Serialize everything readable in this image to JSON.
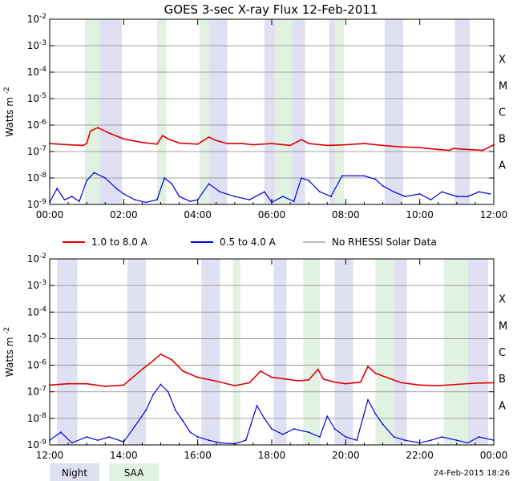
{
  "chart_data": {
    "type": "line",
    "title": "GOES 3-sec X-ray Flux   12-Feb-2011",
    "ylabel": "Watts m",
    "ylabel_superscript": "-2",
    "y_scale": "log",
    "ylim": [
      1e-09,
      0.01
    ],
    "y_tick_labels": [
      {
        "base": "10",
        "exp": "-9"
      },
      {
        "base": "10",
        "exp": "-8"
      },
      {
        "base": "10",
        "exp": "-7"
      },
      {
        "base": "10",
        "exp": "-6"
      },
      {
        "base": "10",
        "exp": "-5"
      },
      {
        "base": "10",
        "exp": "-4"
      },
      {
        "base": "10",
        "exp": "-3"
      },
      {
        "base": "10",
        "exp": "-2"
      }
    ],
    "flare_classes": [
      {
        "label": "A",
        "level": 1e-08
      },
      {
        "label": "B",
        "level": 1e-07
      },
      {
        "label": "C",
        "level": 1e-06
      },
      {
        "label": "M",
        "level": 1e-05
      },
      {
        "label": "X",
        "level": 0.0001
      }
    ],
    "legend": {
      "placement": "between panels",
      "entries": [
        {
          "label": "1.0 to 8.0 A",
          "color": "#e00000"
        },
        {
          "label": "0.5 to 4.0 A",
          "color": "#0000e0"
        },
        {
          "label": "No RHESSI Solar Data",
          "color": "#999999"
        }
      ]
    },
    "band_legend": [
      {
        "label": "Night",
        "color": "#e0e0f3"
      },
      {
        "label": "SAA",
        "color": "#e2f2e2"
      }
    ],
    "footer_timestamp": "24-Feb-2015 18:26",
    "panels": [
      {
        "name": "top",
        "x_range_hours": [
          0,
          12
        ],
        "x_tick_labels": [
          "00:00",
          "02:00",
          "04:00",
          "06:00",
          "08:00",
          "10:00",
          "12:00"
        ],
        "night_bands": [
          [
            1.35,
            1.95
          ],
          [
            4.3,
            4.8
          ],
          [
            5.8,
            6.1
          ],
          [
            6.55,
            6.9
          ],
          [
            7.55,
            7.7
          ],
          [
            9.05,
            9.55
          ],
          [
            10.95,
            11.35
          ]
        ],
        "saa_bands": [
          [
            0.95,
            1.35
          ],
          [
            2.9,
            3.15
          ],
          [
            4.05,
            4.3
          ],
          [
            6.1,
            6.55
          ],
          [
            7.7,
            7.95
          ]
        ],
        "series": [
          {
            "name": "1.0 to 8.0 A",
            "color": "#e00000",
            "x": [
              0,
              0.5,
              0.9,
              1.0,
              1.1,
              1.3,
              1.6,
              2.0,
              2.5,
              2.9,
              3.05,
              3.2,
              3.5,
              4.0,
              4.3,
              4.5,
              4.8,
              5.2,
              5.5,
              6.0,
              6.5,
              6.8,
              7.0,
              7.5,
              8.0,
              8.5,
              9.0,
              9.5,
              10.0,
              10.5,
              10.8,
              10.9,
              11.3,
              11.7,
              12.0
            ],
            "y": [
              2e-07,
              1.8e-07,
              1.7e-07,
              2e-07,
              6e-07,
              8e-07,
              5e-07,
              3e-07,
              2.2e-07,
              1.9e-07,
              4e-07,
              3e-07,
              2.1e-07,
              1.9e-07,
              3.5e-07,
              2.6e-07,
              2e-07,
              2e-07,
              1.8e-07,
              2e-07,
              1.7e-07,
              2.8e-07,
              2e-07,
              1.7e-07,
              1.8e-07,
              2e-07,
              1.7e-07,
              1.5e-07,
              1.4e-07,
              1.2e-07,
              1.1e-07,
              1.3e-07,
              1.2e-07,
              1.1e-07,
              1.8e-07
            ]
          },
          {
            "name": "0.5 to 4.0 A",
            "color": "#0000e0",
            "x": [
              0.0,
              0.2,
              0.4,
              0.6,
              0.8,
              1.0,
              1.2,
              1.5,
              1.8,
              2.0,
              2.3,
              2.6,
              2.9,
              3.1,
              3.3,
              3.5,
              3.8,
              4.0,
              4.3,
              4.6,
              5.0,
              5.4,
              5.8,
              6.0,
              6.3,
              6.6,
              6.8,
              7.0,
              7.3,
              7.6,
              7.9,
              8.2,
              8.5,
              8.8,
              9.0,
              9.3,
              9.6,
              10.0,
              10.3,
              10.6,
              11.0,
              11.3,
              11.6,
              11.9
            ],
            "y": [
              1.2e-09,
              4e-09,
              1.5e-09,
              2e-09,
              1.3e-09,
              8e-09,
              1.6e-08,
              1e-08,
              4e-09,
              2.5e-09,
              1.5e-09,
              1.2e-09,
              1.5e-09,
              1e-08,
              6e-09,
              2e-09,
              1.3e-09,
              1.5e-09,
              6e-09,
              3e-09,
              2e-09,
              1.5e-09,
              3e-09,
              1.2e-09,
              2e-09,
              1.3e-09,
              1e-08,
              8e-09,
              3e-09,
              2e-09,
              1.2e-08,
              1.2e-08,
              1.2e-08,
              9e-09,
              5e-09,
              3e-09,
              2e-09,
              2.5e-09,
              1.5e-09,
              3e-09,
              2e-09,
              2e-09,
              3e-09,
              2.5e-09
            ]
          }
        ]
      },
      {
        "name": "bottom",
        "x_range_hours": [
          12,
          24
        ],
        "x_tick_labels": [
          "12:00",
          "14:00",
          "16:00",
          "18:00",
          "20:00",
          "22:00",
          "00:00"
        ],
        "night_bands": [
          [
            12.2,
            12.75
          ],
          [
            14.1,
            14.6
          ],
          [
            16.1,
            16.6
          ],
          [
            18.05,
            18.4
          ],
          [
            19.7,
            20.2
          ],
          [
            21.3,
            21.65
          ],
          [
            23.3,
            23.85
          ]
        ],
        "saa_bands": [
          [
            16.95,
            17.15
          ],
          [
            18.85,
            19.3
          ],
          [
            20.8,
            21.3
          ],
          [
            22.65,
            23.3
          ]
        ],
        "series": [
          {
            "name": "1.0 to 8.0 A",
            "color": "#e00000",
            "x": [
              12,
              12.5,
              13.0,
              13.5,
              14.0,
              14.5,
              14.8,
              15.0,
              15.3,
              15.6,
              16.0,
              16.5,
              17.0,
              17.4,
              17.7,
              18.0,
              18.4,
              18.7,
              19.0,
              19.25,
              19.4,
              19.7,
              20.0,
              20.4,
              20.6,
              20.8,
              21.1,
              21.5,
              22.0,
              22.5,
              23.0,
              23.5,
              24.0
            ],
            "y": [
              1.8e-07,
              2e-07,
              2e-07,
              1.6e-07,
              1.8e-07,
              7e-07,
              1.5e-06,
              2.6e-06,
              1.6e-06,
              6e-07,
              3.5e-07,
              2.5e-07,
              1.7e-07,
              2.2e-07,
              6e-07,
              3.5e-07,
              3e-07,
              2.6e-07,
              2.8e-07,
              7e-07,
              3e-07,
              2.3e-07,
              2e-07,
              2.3e-07,
              9e-07,
              5e-07,
              3.5e-07,
              2.2e-07,
              1.8e-07,
              1.7e-07,
              1.9e-07,
              2.1e-07,
              2.2e-07
            ]
          },
          {
            "name": "0.5 to 4.0 A",
            "color": "#0000e0",
            "x": [
              12.0,
              12.3,
              12.6,
              13.0,
              13.3,
              13.6,
              14.0,
              14.3,
              14.6,
              14.8,
              15.0,
              15.2,
              15.4,
              15.6,
              15.8,
              16.0,
              16.3,
              16.6,
              17.0,
              17.3,
              17.6,
              17.8,
              18.0,
              18.3,
              18.6,
              19.0,
              19.3,
              19.5,
              19.7,
              20.0,
              20.3,
              20.6,
              20.8,
              21.0,
              21.3,
              21.6,
              22.0,
              22.3,
              22.6,
              23.0,
              23.3,
              23.6,
              24.0
            ],
            "y": [
              1.5e-09,
              3e-09,
              1.2e-09,
              2e-09,
              1.5e-09,
              2e-09,
              1.3e-09,
              5e-09,
              2e-08,
              8e-08,
              1.9e-07,
              1e-07,
              2e-08,
              8e-09,
              3e-09,
              2e-09,
              1.5e-09,
              1.2e-09,
              1.1e-09,
              1.5e-09,
              3e-08,
              1e-08,
              4e-09,
              2.5e-09,
              4e-09,
              3e-09,
              2e-09,
              1.2e-08,
              4e-09,
              2e-09,
              1.5e-09,
              5e-08,
              1.5e-08,
              6e-09,
              2e-09,
              1.5e-09,
              1.2e-09,
              1.5e-09,
              2e-09,
              1.5e-09,
              1.2e-09,
              2e-09,
              1.5e-09
            ]
          }
        ]
      }
    ]
  }
}
